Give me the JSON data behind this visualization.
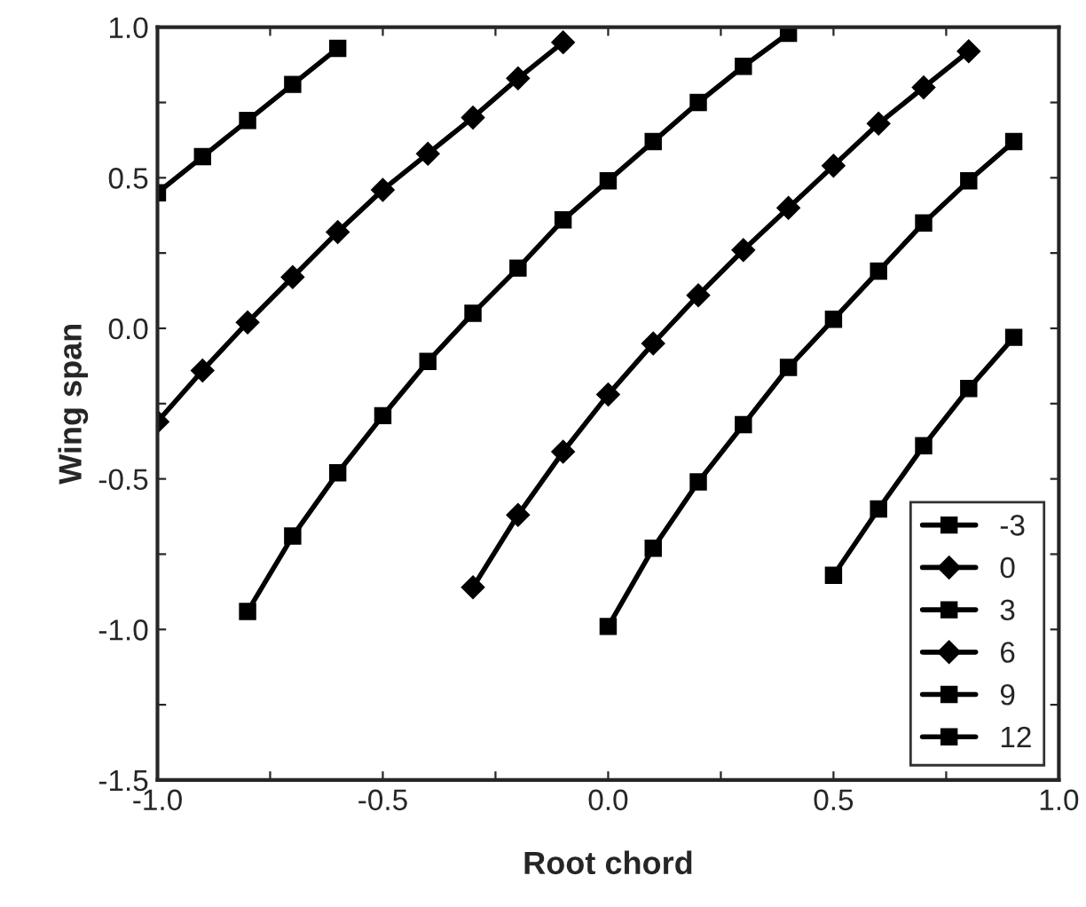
{
  "chart_data": {
    "type": "line",
    "xlabel": "Root chord",
    "ylabel": "Wing span",
    "xlim": [
      -1.0,
      1.0
    ],
    "ylim": [
      -1.5,
      1.0
    ],
    "xticks": [
      {
        "value": -1.0,
        "label": "-1.0"
      },
      {
        "value": -0.75,
        "label": null
      },
      {
        "value": -0.5,
        "label": "-0.5"
      },
      {
        "value": -0.25,
        "label": null
      },
      {
        "value": 0.0,
        "label": "0.0"
      },
      {
        "value": 0.25,
        "label": null
      },
      {
        "value": 0.5,
        "label": "0.5"
      },
      {
        "value": 0.75,
        "label": null
      },
      {
        "value": 1.0,
        "label": "1.0"
      }
    ],
    "yticks": [
      {
        "value": -1.5,
        "label": "-1.5"
      },
      {
        "value": -1.25,
        "label": null
      },
      {
        "value": -1.0,
        "label": "-1.0"
      },
      {
        "value": -0.75,
        "label": null
      },
      {
        "value": -0.5,
        "label": "-0.5"
      },
      {
        "value": -0.25,
        "label": null
      },
      {
        "value": 0.0,
        "label": "0.0"
      },
      {
        "value": 0.25,
        "label": null
      },
      {
        "value": 0.5,
        "label": "0.5"
      },
      {
        "value": 0.75,
        "label": null
      },
      {
        "value": 1.0,
        "label": "1.0"
      }
    ],
    "grid": false,
    "legend": "bottom right",
    "line_style": "solid",
    "series": [
      {
        "name": "-3",
        "color": "#000000",
        "marker": "square",
        "x": [
          -1.0,
          -0.9,
          -0.8,
          -0.7,
          -0.6
        ],
        "values": [
          0.45,
          0.57,
          0.69,
          0.81,
          0.93
        ]
      },
      {
        "name": "0",
        "color": "#000000",
        "marker": "diamond",
        "x": [
          -1.0,
          -0.9,
          -0.8,
          -0.7,
          -0.6,
          -0.5,
          -0.4,
          -0.3,
          -0.2,
          -0.1
        ],
        "values": [
          -0.31,
          -0.14,
          0.02,
          0.17,
          0.32,
          0.46,
          0.58,
          0.7,
          0.83,
          0.95
        ]
      },
      {
        "name": "3",
        "color": "#000000",
        "marker": "square",
        "x": [
          -0.8,
          -0.7,
          -0.6,
          -0.5,
          -0.4,
          -0.3,
          -0.2,
          -0.1,
          0.0,
          0.1,
          0.2,
          0.3,
          0.4
        ],
        "values": [
          -0.94,
          -0.69,
          -0.48,
          -0.29,
          -0.11,
          0.05,
          0.2,
          0.36,
          0.49,
          0.62,
          0.75,
          0.87,
          0.98
        ]
      },
      {
        "name": "6",
        "color": "#000000",
        "marker": "diamond",
        "x": [
          -0.3,
          -0.2,
          -0.1,
          0.0,
          0.1,
          0.2,
          0.3,
          0.4,
          0.5,
          0.6,
          0.7,
          0.8
        ],
        "values": [
          -0.86,
          -0.62,
          -0.41,
          -0.22,
          -0.05,
          0.11,
          0.26,
          0.4,
          0.54,
          0.68,
          0.8,
          0.92
        ]
      },
      {
        "name": "9",
        "color": "#000000",
        "marker": "square",
        "x": [
          0.0,
          0.1,
          0.2,
          0.3,
          0.4,
          0.5,
          0.6,
          0.7,
          0.8,
          0.9
        ],
        "values": [
          -0.99,
          -0.73,
          -0.51,
          -0.32,
          -0.13,
          0.03,
          0.19,
          0.35,
          0.49,
          0.62
        ]
      },
      {
        "name": "12",
        "color": "#000000",
        "marker": "square",
        "x": [
          0.5,
          0.6,
          0.7,
          0.8,
          0.9
        ],
        "values": [
          -0.82,
          -0.6,
          -0.39,
          -0.2,
          -0.03
        ]
      }
    ]
  }
}
